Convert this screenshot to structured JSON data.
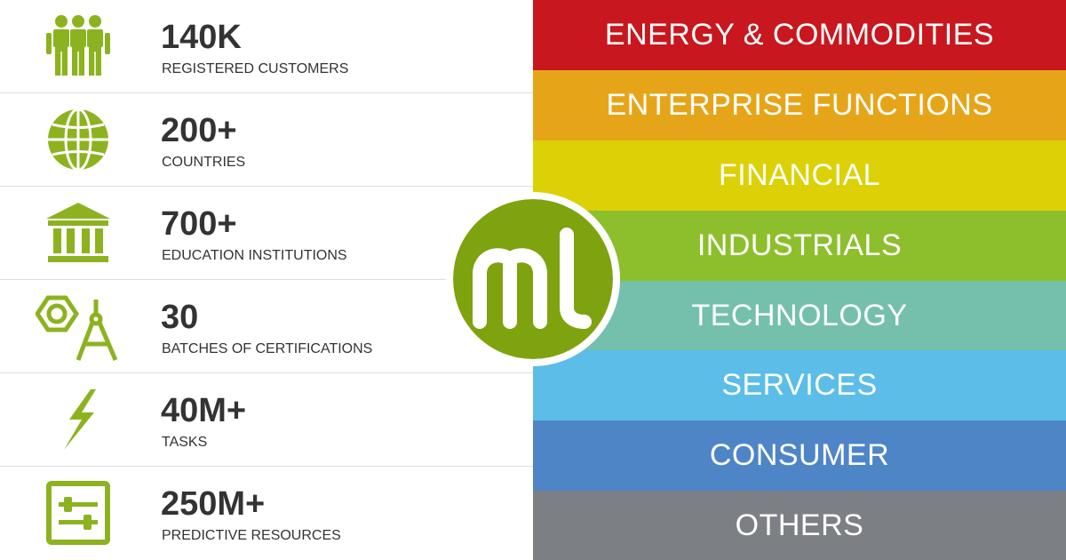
{
  "colors": {
    "icon_green": "#8cb31f",
    "text_dark": "#333333",
    "logo_green": "#7fa30f"
  },
  "stats": [
    {
      "value": "140K",
      "label": "REGISTERED CUSTOMERS",
      "icon": "people-icon"
    },
    {
      "value": "200+",
      "label": "COUNTRIES",
      "icon": "globe-icon"
    },
    {
      "value": "700+",
      "label": "EDUCATION INSTITUTIONS",
      "icon": "institution-icon"
    },
    {
      "value": "30",
      "label": "BATCHES OF CERTIFICATIONS",
      "icon": "compass-icon"
    },
    {
      "value": "40M+",
      "label": "TASKS",
      "icon": "lightning-icon"
    },
    {
      "value": "250M+",
      "label": "PREDICTIVE RESOURCES",
      "icon": "sliders-icon"
    }
  ],
  "industries": [
    {
      "label": "ENERGY & COMMODITIES",
      "color": "#c8171e"
    },
    {
      "label": "ENTERPRISE FUNCTIONS",
      "color": "#e6a519"
    },
    {
      "label": "FINANCIAL",
      "color": "#dcd106"
    },
    {
      "label": "INDUSTRIALS",
      "color": "#8dbf2c"
    },
    {
      "label": "TECHNOLOGY",
      "color": "#74c0ad"
    },
    {
      "label": "SERVICES",
      "color": "#5bbde8"
    },
    {
      "label": "CONSUMER",
      "color": "#4e85c6"
    },
    {
      "label": "OTHERS",
      "color": "#7c7f83"
    }
  ],
  "logo": {
    "text": "ml"
  }
}
